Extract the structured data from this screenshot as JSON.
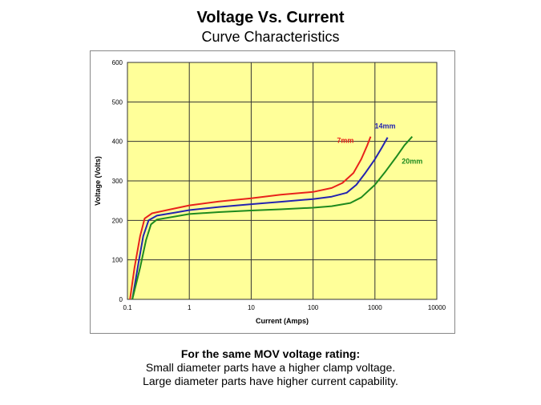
{
  "slide": {
    "title": "Voltage Vs. Current",
    "subtitle": "Curve Characteristics",
    "caption": {
      "line1": "For the same MOV voltage rating:",
      "line2": "Small diameter parts have a higher clamp voltage.",
      "line3": "Large diameter parts have higher current capability."
    }
  },
  "colors": {
    "plot_bg": "#FFFF99",
    "frame_bg": "#FFFFFF",
    "grid": "#333333",
    "axis_text": "#000000"
  },
  "chart_data": {
    "type": "line",
    "xscale": "log",
    "xlabel": "Current (Amps)",
    "ylabel": "Voltage (Volts)",
    "xlim": [
      0.1,
      10000
    ],
    "ylim": [
      0,
      600
    ],
    "xticks": [
      0.1,
      1,
      10,
      100,
      1000,
      10000
    ],
    "xtick_labels": [
      "0.1",
      "1",
      "10",
      "100",
      "1000",
      "10000"
    ],
    "yticks": [
      0,
      100,
      200,
      300,
      400,
      500,
      600
    ],
    "ytick_labels": [
      "0",
      "100",
      "200",
      "300",
      "400",
      "500",
      "600"
    ],
    "grid": true,
    "series": [
      {
        "name": "7mm",
        "color": "#E8221B",
        "points": [
          [
            0.11,
            0
          ],
          [
            0.13,
            80
          ],
          [
            0.16,
            160
          ],
          [
            0.19,
            205
          ],
          [
            0.25,
            218
          ],
          [
            0.5,
            228
          ],
          [
            1,
            238
          ],
          [
            3,
            248
          ],
          [
            10,
            256
          ],
          [
            30,
            265
          ],
          [
            100,
            272
          ],
          [
            200,
            282
          ],
          [
            300,
            295
          ],
          [
            450,
            320
          ],
          [
            600,
            355
          ],
          [
            750,
            390
          ],
          [
            850,
            412
          ]
        ]
      },
      {
        "name": "14mm",
        "color": "#2323B0",
        "points": [
          [
            0.12,
            0
          ],
          [
            0.15,
            90
          ],
          [
            0.18,
            160
          ],
          [
            0.22,
            200
          ],
          [
            0.3,
            212
          ],
          [
            0.6,
            220
          ],
          [
            1,
            226
          ],
          [
            3,
            234
          ],
          [
            10,
            241
          ],
          [
            30,
            247
          ],
          [
            100,
            254
          ],
          [
            200,
            260
          ],
          [
            350,
            270
          ],
          [
            500,
            290
          ],
          [
            700,
            320
          ],
          [
            1000,
            355
          ],
          [
            1300,
            385
          ],
          [
            1600,
            410
          ]
        ]
      },
      {
        "name": "20mm",
        "color": "#1E8A1E",
        "points": [
          [
            0.12,
            0
          ],
          [
            0.16,
            80
          ],
          [
            0.2,
            150
          ],
          [
            0.24,
            190
          ],
          [
            0.3,
            202
          ],
          [
            0.6,
            210
          ],
          [
            1,
            216
          ],
          [
            3,
            221
          ],
          [
            10,
            225
          ],
          [
            30,
            228
          ],
          [
            100,
            232
          ],
          [
            200,
            236
          ],
          [
            400,
            244
          ],
          [
            600,
            258
          ],
          [
            1000,
            290
          ],
          [
            1500,
            325
          ],
          [
            2200,
            360
          ],
          [
            3000,
            390
          ],
          [
            4000,
            412
          ]
        ]
      }
    ]
  }
}
